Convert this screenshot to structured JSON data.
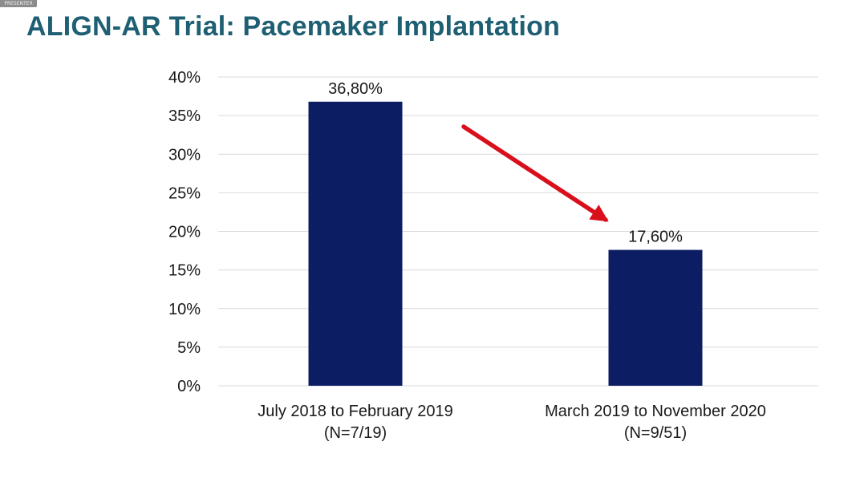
{
  "corner_tag": "PRESENTER",
  "chart_data": {
    "type": "bar",
    "title": "ALIGN-AR Trial: Pacemaker Implantation",
    "xlabel": "",
    "ylabel": "",
    "ylim": [
      0,
      40
    ],
    "yticks": [
      0,
      5,
      10,
      15,
      20,
      25,
      30,
      35,
      40
    ],
    "ytick_labels": [
      "0%",
      "5%",
      "10%",
      "15%",
      "20%",
      "25%",
      "30%",
      "35%",
      "40%"
    ],
    "grid": true,
    "categories": [
      {
        "line1": "July 2018 to February 2019",
        "line2": "(N=7/19)"
      },
      {
        "line1": "March 2019 to November 2020",
        "line2": "(N=9/51)"
      }
    ],
    "values": [
      36.8,
      17.6
    ],
    "value_labels": [
      "36,80%",
      "17,60%"
    ],
    "bar_color": "#0d1d63",
    "grid_color": "#d9d9d9",
    "annotation": {
      "type": "arrow",
      "from_category": 0,
      "to_category": 1,
      "direction": "down",
      "color": "#d9101c"
    }
  }
}
